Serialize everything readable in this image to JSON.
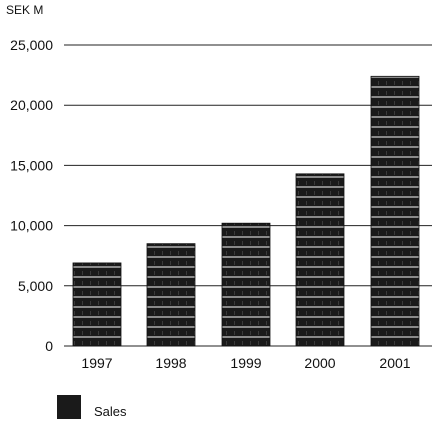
{
  "chart_data": {
    "type": "bar",
    "unit_label": "SEK M",
    "categories": [
      "1997",
      "1998",
      "1999",
      "2000",
      "2001"
    ],
    "series": [
      {
        "name": "Sales",
        "values": [
          6900,
          8500,
          10200,
          14300,
          22400
        ]
      }
    ],
    "ylim": [
      0,
      25000
    ],
    "y_ticks": [
      0,
      5000,
      10000,
      15000,
      20000,
      25000
    ],
    "y_tick_labels": [
      "0",
      "5,000",
      "10,000",
      "15,000",
      "20,000",
      "25,000"
    ],
    "grid": true,
    "legend_position": "bottom-left",
    "colors": {
      "bar": "#1a1a1a",
      "bar_stripe": "#8a8a8a",
      "grid": "#222222"
    }
  }
}
